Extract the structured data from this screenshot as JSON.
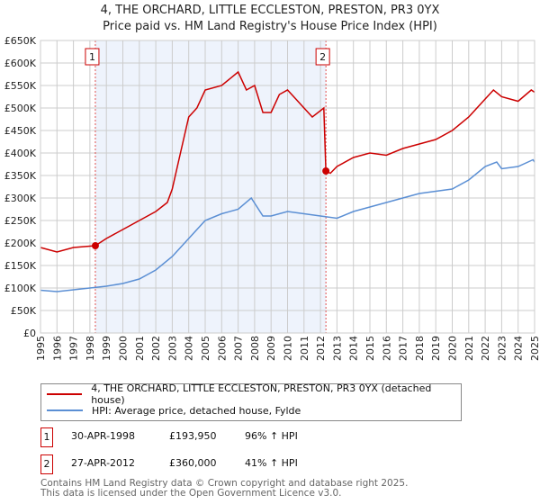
{
  "chart_data": {
    "type": "line",
    "title": "4, THE ORCHARD, LITTLE ECCLESTON, PRESTON, PR3 0YX",
    "subtitle": "Price paid vs. HM Land Registry's House Price Index (HPI)",
    "xlim": [
      1995,
      2025
    ],
    "ylim": [
      0,
      650000
    ],
    "x_ticks": [
      "1995",
      "1996",
      "1997",
      "1998",
      "1999",
      "2000",
      "2001",
      "2002",
      "2003",
      "2004",
      "2005",
      "2006",
      "2007",
      "2008",
      "2009",
      "2010",
      "2011",
      "2012",
      "2013",
      "2014",
      "2015",
      "2016",
      "2017",
      "2018",
      "2019",
      "2020",
      "2021",
      "2022",
      "2023",
      "2024",
      "2025"
    ],
    "y_ticks": [
      {
        "v": 0,
        "label": "£0"
      },
      {
        "v": 50000,
        "label": "£50K"
      },
      {
        "v": 100000,
        "label": "£100K"
      },
      {
        "v": 150000,
        "label": "£150K"
      },
      {
        "v": 200000,
        "label": "£200K"
      },
      {
        "v": 250000,
        "label": "£250K"
      },
      {
        "v": 300000,
        "label": "£300K"
      },
      {
        "v": 350000,
        "label": "£350K"
      },
      {
        "v": 400000,
        "label": "£400K"
      },
      {
        "v": 450000,
        "label": "£450K"
      },
      {
        "v": 500000,
        "label": "£500K"
      },
      {
        "v": 550000,
        "label": "£550K"
      },
      {
        "v": 600000,
        "label": "£600K"
      },
      {
        "v": 650000,
        "label": "£650K"
      }
    ],
    "grid": true,
    "shaded_range": [
      1998.33,
      2012.33
    ],
    "series": [
      {
        "name": "4, THE ORCHARD, LITTLE ECCLESTON, PRESTON, PR3 0YX (detached house)",
        "color": "#cc0000",
        "x": [
          1995,
          1996,
          1997,
          1998.33,
          1999,
          2000,
          2001,
          2002,
          2002.7,
          2003,
          2003.5,
          2004,
          2004.5,
          2005,
          2006,
          2007,
          2007.5,
          2008,
          2008.5,
          2009,
          2009.5,
          2010,
          2010.5,
          2011,
          2011.5,
          2012.2,
          2012.33,
          2012.6,
          2013,
          2014,
          2015,
          2016,
          2017,
          2018,
          2019,
          2020,
          2021,
          2022,
          2022.5,
          2023,
          2024,
          2024.8,
          2025
        ],
        "y": [
          190000,
          180000,
          190000,
          193950,
          210000,
          230000,
          250000,
          270000,
          290000,
          320000,
          400000,
          480000,
          500000,
          540000,
          550000,
          580000,
          540000,
          550000,
          490000,
          490000,
          530000,
          540000,
          520000,
          500000,
          480000,
          500000,
          360000,
          355000,
          370000,
          390000,
          400000,
          395000,
          410000,
          420000,
          430000,
          450000,
          480000,
          520000,
          540000,
          525000,
          515000,
          540000,
          535000
        ]
      },
      {
        "name": "HPI: Average price, detached house, Fylde",
        "color": "#5b8fd4",
        "x": [
          1995,
          1996,
          1997,
          1998,
          1999,
          2000,
          2001,
          2002,
          2003,
          2004,
          2005,
          2006,
          2007,
          2007.8,
          2008.5,
          2009,
          2010,
          2011,
          2012,
          2013,
          2014,
          2015,
          2016,
          2017,
          2018,
          2019,
          2020,
          2021,
          2022,
          2022.7,
          2023,
          2024,
          2024.9,
          2025
        ],
        "y": [
          95000,
          92000,
          96000,
          100000,
          104000,
          110000,
          120000,
          140000,
          170000,
          210000,
          250000,
          265000,
          275000,
          300000,
          260000,
          260000,
          270000,
          265000,
          260000,
          255000,
          270000,
          280000,
          290000,
          300000,
          310000,
          315000,
          320000,
          340000,
          370000,
          380000,
          365000,
          370000,
          385000,
          380000
        ]
      }
    ],
    "annotations": [
      {
        "label": "1",
        "x": 1998.33,
        "y": 193950
      },
      {
        "label": "2",
        "x": 2012.33,
        "y": 360000
      }
    ],
    "legend": "below"
  },
  "transactions": [
    {
      "num": "1",
      "date": "30-APR-1998",
      "price": "£193,950",
      "hpi": "96% ↑ HPI"
    },
    {
      "num": "2",
      "date": "27-APR-2012",
      "price": "£360,000",
      "hpi": "41% ↑ HPI"
    }
  ],
  "footer": {
    "line1": "Contains HM Land Registry data © Crown copyright and database right 2025.",
    "line2": "This data is licensed under the Open Government Licence v3.0."
  }
}
